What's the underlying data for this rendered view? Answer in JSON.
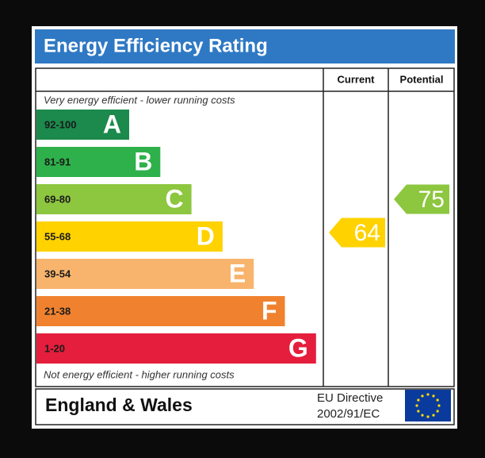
{
  "title": "Energy Efficiency Rating",
  "columns": [
    "Current",
    "Potential"
  ],
  "top_note": "Very energy efficient - lower running costs",
  "bottom_note": "Not energy efficient - higher running costs",
  "bands": [
    {
      "range": "92-100",
      "letter": "A",
      "color": "#1b8a4c"
    },
    {
      "range": "81-91",
      "letter": "B",
      "color": "#2eb14b"
    },
    {
      "range": "69-80",
      "letter": "C",
      "color": "#8dc63f"
    },
    {
      "range": "55-68",
      "letter": "D",
      "color": "#ffd200"
    },
    {
      "range": "39-54",
      "letter": "E",
      "color": "#f8b46d"
    },
    {
      "range": "21-38",
      "letter": "F",
      "color": "#f0822f"
    },
    {
      "range": "1-20",
      "letter": "G",
      "color": "#e41e3c"
    }
  ],
  "current": {
    "value": 64,
    "color": "#ffd200"
  },
  "potential": {
    "value": 75,
    "color": "#8dc63f"
  },
  "footer": {
    "region": "England & Wales",
    "directive": [
      "EU Directive",
      "2002/91/EC"
    ]
  }
}
